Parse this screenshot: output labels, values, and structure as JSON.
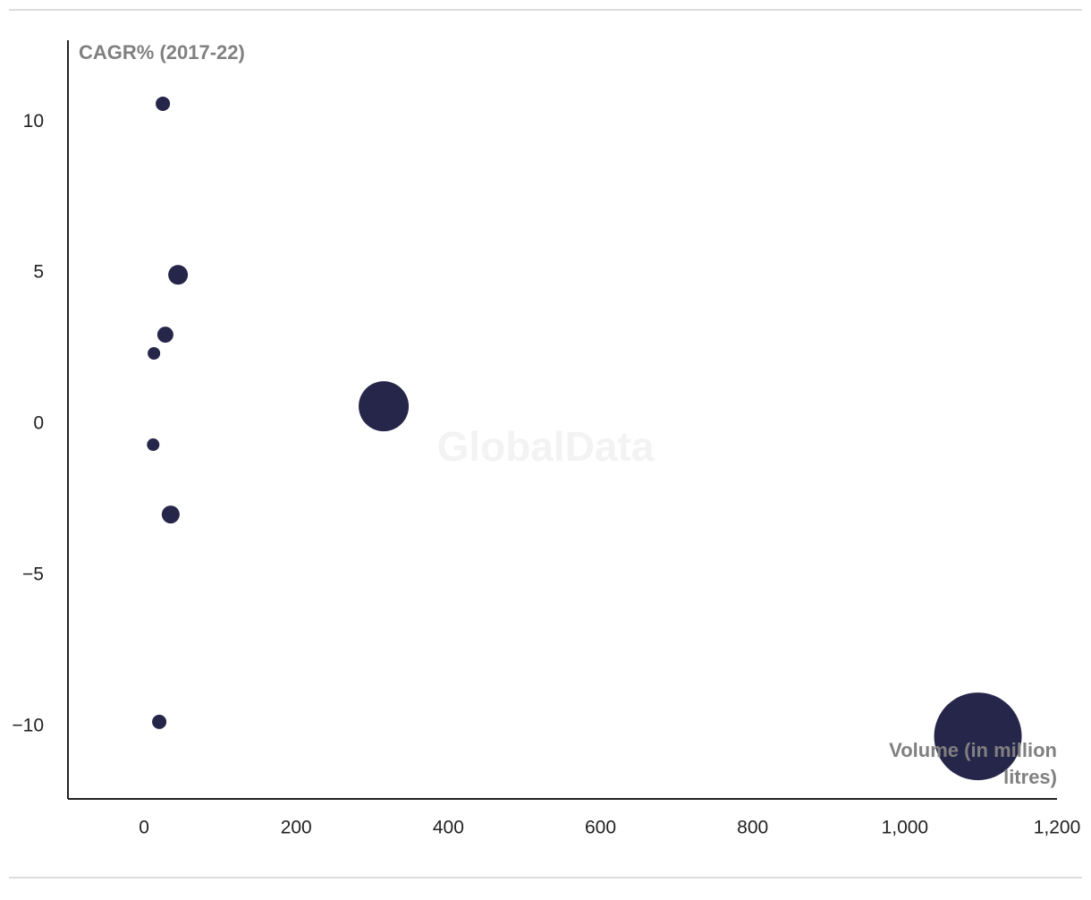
{
  "chart_data": {
    "type": "bubble",
    "y_label": "CAGR% (2017-22)",
    "x_label": [
      "Volume (in million",
      "litres)"
    ],
    "watermark": "GlobalData",
    "color": "#26264a",
    "x": [
      24.7,
      44.7,
      28,
      13,
      315,
      12,
      35,
      20,
      1096
    ],
    "y": [
      10.6,
      4.94,
      2.96,
      2.34,
      0.59,
      -0.68,
      -2.99,
      -9.85,
      -10.33
    ],
    "sizes": [
      64,
      121,
      81,
      49,
      784,
      49,
      100,
      64,
      2401
    ],
    "xlim": [
      -100,
      1200
    ],
    "ylim": [
      -12.4,
      12.7
    ],
    "xticks": [
      0,
      200,
      400,
      600,
      800,
      {
        "value": 1000,
        "label": "1,000"
      },
      {
        "value": 1200,
        "label": "1,200"
      }
    ],
    "yticks": [
      10,
      5,
      0,
      {
        "value": -5,
        "label": "−5"
      },
      {
        "value": -10,
        "label": "−10"
      }
    ]
  }
}
